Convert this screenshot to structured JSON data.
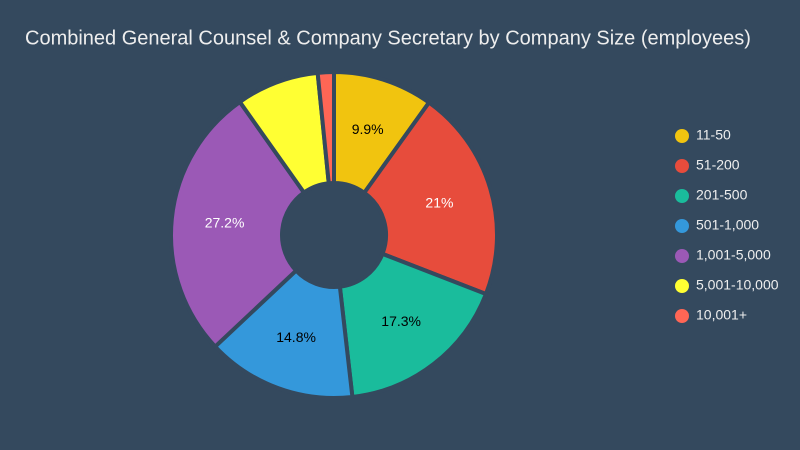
{
  "chart_data": {
    "type": "donut",
    "title": "Combined General Counsel & Company Secretary by Company Size (employees)",
    "categories": [
      "11-50",
      "51-200",
      "201-500",
      "501-1,000",
      "1,001-5,000",
      "5,001-10,000",
      "10,001+"
    ],
    "values": [
      9.9,
      21,
      17.3,
      14.8,
      27.2,
      8.2,
      1.6
    ],
    "value_labels": [
      "9.9%",
      "21%",
      "17.3%",
      "14.8%",
      "27.2%",
      null,
      null
    ],
    "colors": [
      "#f1c40f",
      "#e74c3c",
      "#1abc9c",
      "#3498db",
      "#9b59b6",
      "#ffff33",
      "#ff6655"
    ],
    "label_colors": [
      "#000000",
      "#ffffff",
      "#000000",
      "#000000",
      "#ffffff",
      "#000000",
      "#000000"
    ],
    "legend": "right"
  }
}
